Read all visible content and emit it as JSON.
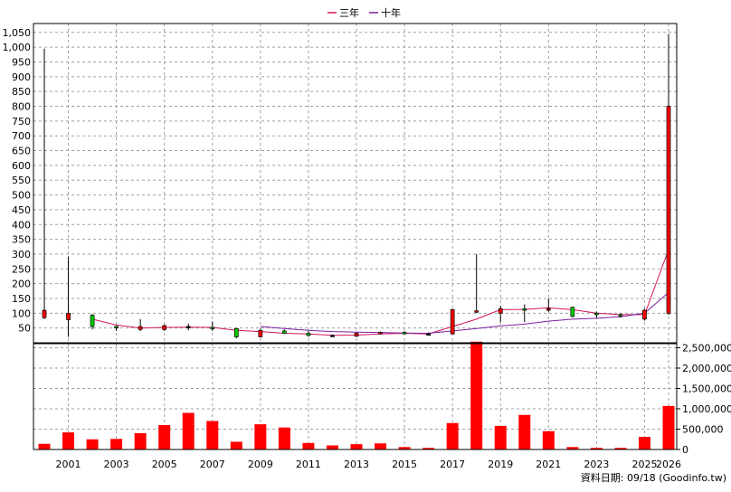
{
  "footer_text": "資料日期: 09/18  (Goodinfo.tw)",
  "chart_data": [
    {
      "type": "candlestick",
      "panel": "price",
      "legend_position": "top-center",
      "grid": true,
      "ylim": [
        0,
        1080
      ],
      "yticks": [
        50,
        100,
        150,
        200,
        250,
        300,
        350,
        400,
        450,
        500,
        550,
        600,
        650,
        700,
        750,
        800,
        850,
        900,
        950,
        1000,
        1050
      ],
      "ytick_labels": [
        "50",
        "100",
        "150",
        "200",
        "250",
        "300",
        "350",
        "400",
        "450",
        "500",
        "550",
        "600",
        "650",
        "700",
        "750",
        "800",
        "850",
        "900",
        "950",
        "1,000",
        "1,050"
      ],
      "x": [
        2000,
        2001,
        2002,
        2003,
        2004,
        2005,
        2006,
        2007,
        2008,
        2009,
        2010,
        2011,
        2012,
        2013,
        2014,
        2015,
        2016,
        2017,
        2018,
        2019,
        2020,
        2021,
        2022,
        2023,
        2024,
        2025,
        2026
      ],
      "xtick_labels": [
        "2001",
        "2003",
        "2005",
        "2007",
        "2009",
        "2011",
        "2013",
        "2015",
        "2017",
        "2019",
        "2021",
        "2023",
        "2025",
        "2026"
      ],
      "xtick_years": [
        2001,
        2003,
        2005,
        2007,
        2009,
        2011,
        2013,
        2015,
        2017,
        2019,
        2021,
        2023,
        2025,
        2026
      ],
      "up_color": "#00cc00",
      "down_color": "#ff0000",
      "neutral_color": "#000000",
      "candles": [
        {
          "year": 2000,
          "open": 85,
          "close": 110,
          "high": 995,
          "low": 80
        },
        {
          "year": 2001,
          "open": 78,
          "close": 100,
          "high": 292,
          "low": 20
        },
        {
          "year": 2002,
          "open": 93,
          "close": 55,
          "high": 98,
          "low": 45
        },
        {
          "year": 2003,
          "open": 55,
          "close": 50,
          "high": 58,
          "low": 40
        },
        {
          "year": 2004,
          "open": 45,
          "close": 55,
          "high": 80,
          "low": 40
        },
        {
          "year": 2005,
          "open": 45,
          "close": 58,
          "high": 62,
          "low": 40
        },
        {
          "year": 2006,
          "open": 55,
          "close": 55,
          "high": 65,
          "low": 42
        },
        {
          "year": 2007,
          "open": 52,
          "close": 50,
          "high": 72,
          "low": 40
        },
        {
          "year": 2008,
          "open": 48,
          "close": 20,
          "high": 50,
          "low": 15
        },
        {
          "year": 2009,
          "open": 20,
          "close": 42,
          "high": 48,
          "low": 18
        },
        {
          "year": 2010,
          "open": 40,
          "close": 32,
          "high": 45,
          "low": 30
        },
        {
          "year": 2011,
          "open": 32,
          "close": 25,
          "high": 40,
          "low": 20
        },
        {
          "year": 2012,
          "open": 25,
          "close": 25,
          "high": 28,
          "low": 20
        },
        {
          "year": 2013,
          "open": 22,
          "close": 32,
          "high": 35,
          "low": 20
        },
        {
          "year": 2014,
          "open": 30,
          "close": 35,
          "high": 38,
          "low": 28
        },
        {
          "year": 2015,
          "open": 35,
          "close": 32,
          "high": 40,
          "low": 28
        },
        {
          "year": 2016,
          "open": 30,
          "close": 30,
          "high": 35,
          "low": 28
        },
        {
          "year": 2017,
          "open": 30,
          "close": 112,
          "high": 115,
          "low": 28
        },
        {
          "year": 2018,
          "open": 105,
          "close": 108,
          "high": 300,
          "low": 100
        },
        {
          "year": 2019,
          "open": 100,
          "close": 115,
          "high": 125,
          "low": 70
        },
        {
          "year": 2020,
          "open": 115,
          "close": 110,
          "high": 130,
          "low": 70
        },
        {
          "year": 2021,
          "open": 110,
          "close": 115,
          "high": 150,
          "low": 105
        },
        {
          "year": 2022,
          "open": 120,
          "close": 90,
          "high": 122,
          "low": 85
        },
        {
          "year": 2023,
          "open": 100,
          "close": 95,
          "high": 105,
          "low": 85
        },
        {
          "year": 2024,
          "open": 95,
          "close": 90,
          "high": 100,
          "low": 85
        },
        {
          "year": 2025,
          "open": 80,
          "close": 110,
          "high": 115,
          "low": 75
        },
        {
          "year": 2026,
          "open": 100,
          "close": 800,
          "high": 1045,
          "low": 95
        }
      ],
      "series": [
        {
          "name": "三年",
          "color": "#d4145a",
          "points": [
            [
              2002,
              80
            ],
            [
              2003,
              60
            ],
            [
              2004,
              50
            ],
            [
              2005,
              52
            ],
            [
              2006,
              53
            ],
            [
              2007,
              52
            ],
            [
              2008,
              42
            ],
            [
              2009,
              38
            ],
            [
              2010,
              32
            ],
            [
              2011,
              30
            ],
            [
              2012,
              25
            ],
            [
              2013,
              26
            ],
            [
              2014,
              30
            ],
            [
              2015,
              32
            ],
            [
              2016,
              30
            ],
            [
              2017,
              55
            ],
            [
              2018,
              80
            ],
            [
              2019,
              112
            ],
            [
              2020,
              113
            ],
            [
              2021,
              118
            ],
            [
              2022,
              112
            ],
            [
              2023,
              100
            ],
            [
              2024,
              95
            ],
            [
              2025,
              95
            ],
            [
              2026,
              315
            ]
          ]
        },
        {
          "name": "十年",
          "color": "#7a1fa2",
          "points": [
            [
              2009,
              55
            ],
            [
              2010,
              48
            ],
            [
              2011,
              42
            ],
            [
              2012,
              38
            ],
            [
              2013,
              36
            ],
            [
              2014,
              35
            ],
            [
              2015,
              33
            ],
            [
              2016,
              32
            ],
            [
              2017,
              40
            ],
            [
              2018,
              48
            ],
            [
              2019,
              57
            ],
            [
              2020,
              63
            ],
            [
              2021,
              73
            ],
            [
              2022,
              80
            ],
            [
              2023,
              83
            ],
            [
              2024,
              88
            ],
            [
              2025,
              100
            ],
            [
              2026,
              170
            ]
          ]
        }
      ]
    },
    {
      "type": "bar",
      "panel": "volume",
      "grid": true,
      "bar_color": "#ff0000",
      "ylim": [
        0,
        2600000
      ],
      "yticks": [
        0,
        500000,
        1000000,
        1500000,
        2000000,
        2500000
      ],
      "ytick_labels": [
        "0",
        "500,000",
        "1,000,000",
        "1,500,000",
        "2,000,000",
        "2,500,000"
      ],
      "x": [
        2000,
        2001,
        2002,
        2003,
        2004,
        2005,
        2006,
        2007,
        2008,
        2009,
        2010,
        2011,
        2012,
        2013,
        2014,
        2015,
        2016,
        2017,
        2018,
        2019,
        2020,
        2021,
        2022,
        2023,
        2024,
        2025,
        2026
      ],
      "values": [
        140000,
        420000,
        250000,
        260000,
        400000,
        600000,
        900000,
        700000,
        190000,
        620000,
        540000,
        160000,
        100000,
        130000,
        150000,
        60000,
        40000,
        650000,
        2650000,
        580000,
        850000,
        450000,
        60000,
        40000,
        40000,
        310000,
        1070000
      ]
    }
  ]
}
